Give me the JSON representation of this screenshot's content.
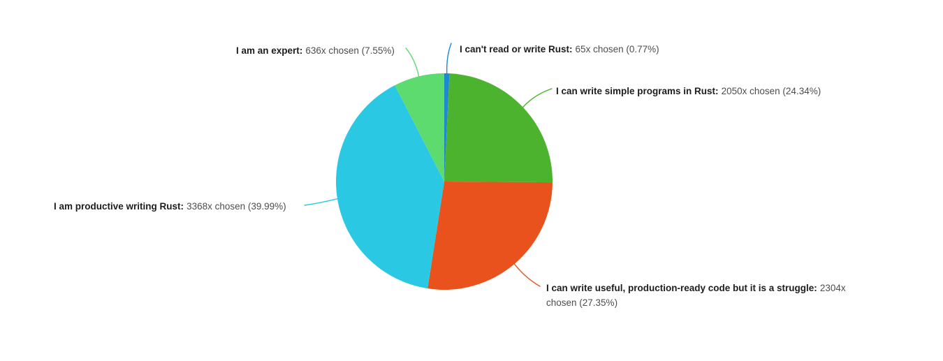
{
  "background": "#ffffff",
  "text_colors": {
    "bold": "#1d1d1d",
    "regular": "#4d4d4d"
  },
  "chart_data": {
    "type": "pie",
    "title": "",
    "direction": "clockwise",
    "start_angle_deg": 0,
    "legend_position": "outside-callout-labels",
    "slices": [
      {
        "label": "I can't read or write Rust",
        "count": 65,
        "percent": 0.77,
        "color": "#1d89cf"
      },
      {
        "label": "I can write simple programs in Rust",
        "count": 2050,
        "percent": 24.34,
        "color": "#4cb32f"
      },
      {
        "label": "I can write useful, production-ready code but it is a struggle",
        "count": 2304,
        "percent": 27.35,
        "color": "#e9521d"
      },
      {
        "label": "I am productive writing Rust",
        "count": 3368,
        "percent": 39.99,
        "color": "#2bc8e4"
      },
      {
        "label": "I am an expert",
        "count": 636,
        "percent": 7.55,
        "color": "#5edb6e"
      }
    ]
  },
  "labels": [
    {
      "bold": "I can't read or write Rust:",
      "rest": "65x chosen (0.77%)"
    },
    {
      "bold": "I can write simple programs in Rust:",
      "rest": "2050x chosen (24.34%)"
    },
    {
      "bold": "I can write useful, production-ready code but it is a struggle:",
      "rest": "2304x\nchosen (27.35%)"
    },
    {
      "bold": "I am productive writing Rust:",
      "rest": "3368x chosen (39.99%)"
    },
    {
      "bold": "I am an expert:",
      "rest": "636x chosen (7.55%)"
    }
  ]
}
